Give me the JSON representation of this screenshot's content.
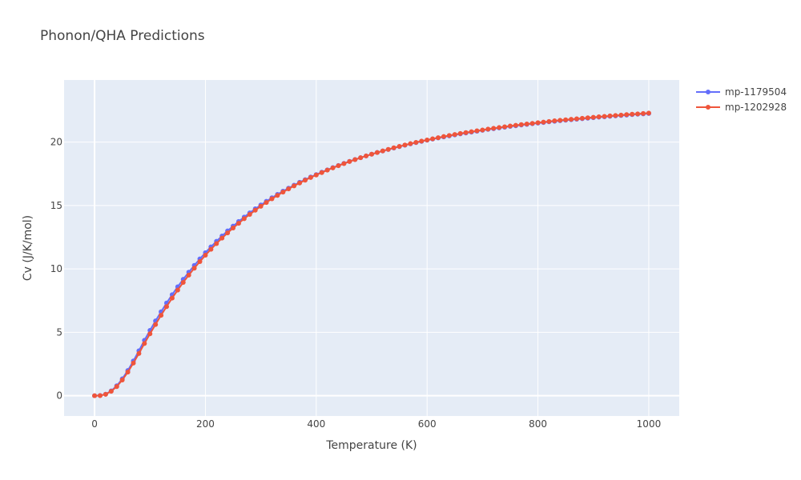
{
  "chart_data": {
    "type": "line",
    "title": "Phonon/QHA Predictions",
    "xlabel": "Temperature (K)",
    "ylabel": "Cv (J/K/mol)",
    "xlim": [
      -55,
      1055
    ],
    "ylim": [
      -1.6,
      24.9
    ],
    "x_ticks": [
      0,
      200,
      400,
      600,
      800,
      1000
    ],
    "y_ticks": [
      0,
      5,
      10,
      15,
      20
    ],
    "grid": true,
    "legend_position": "top-right",
    "x": [
      0,
      10,
      20,
      30,
      40,
      50,
      60,
      70,
      80,
      90,
      100,
      110,
      120,
      130,
      140,
      150,
      160,
      170,
      180,
      190,
      200,
      210,
      220,
      230,
      240,
      250,
      260,
      270,
      280,
      290,
      300,
      310,
      320,
      330,
      340,
      350,
      360,
      370,
      380,
      390,
      400,
      410,
      420,
      430,
      440,
      450,
      460,
      470,
      480,
      490,
      500,
      510,
      520,
      530,
      540,
      550,
      560,
      570,
      580,
      590,
      600,
      610,
      620,
      630,
      640,
      650,
      660,
      670,
      680,
      690,
      700,
      710,
      720,
      730,
      740,
      750,
      760,
      770,
      780,
      790,
      800,
      810,
      820,
      830,
      840,
      850,
      860,
      870,
      880,
      890,
      900,
      910,
      920,
      930,
      940,
      950,
      960,
      970,
      980,
      990,
      1000
    ],
    "series": [
      {
        "name": "mp-1179504",
        "color": "#636efa",
        "values": [
          0.0,
          0.02,
          0.12,
          0.38,
          0.78,
          1.33,
          1.99,
          2.74,
          3.54,
          4.37,
          5.15,
          5.9,
          6.62,
          7.31,
          7.97,
          8.59,
          9.18,
          9.74,
          10.28,
          10.79,
          11.28,
          11.74,
          12.18,
          12.6,
          13.0,
          13.38,
          13.74,
          14.09,
          14.42,
          14.74,
          15.04,
          15.33,
          15.61,
          15.88,
          16.13,
          16.37,
          16.6,
          16.83,
          17.04,
          17.25,
          17.44,
          17.63,
          17.81,
          17.99,
          18.16,
          18.32,
          18.48,
          18.63,
          18.77,
          18.91,
          19.05,
          19.18,
          19.3,
          19.42,
          19.54,
          19.65,
          19.76,
          19.86,
          19.96,
          20.06,
          20.15,
          20.24,
          20.33,
          20.41,
          20.49,
          20.57,
          20.65,
          20.72,
          20.79,
          20.86,
          20.93,
          21.0,
          21.06,
          21.12,
          21.18,
          21.24,
          21.29,
          21.35,
          21.4,
          21.45,
          21.5,
          21.55,
          21.6,
          21.64,
          21.69,
          21.73,
          21.77,
          21.81,
          21.85,
          21.89,
          21.93,
          21.97,
          22.0,
          22.04,
          22.07,
          22.1,
          22.13,
          22.17,
          22.2,
          22.23,
          22.26
        ]
      },
      {
        "name": "mp-1202928",
        "color": "#ef553b",
        "values": [
          0.0,
          0.01,
          0.11,
          0.35,
          0.72,
          1.24,
          1.86,
          2.57,
          3.33,
          4.12,
          4.88,
          5.62,
          6.34,
          7.03,
          7.7,
          8.33,
          8.94,
          9.51,
          10.06,
          10.58,
          11.08,
          11.55,
          12.0,
          12.43,
          12.84,
          13.23,
          13.6,
          13.96,
          14.3,
          14.63,
          14.94,
          15.24,
          15.53,
          15.8,
          16.06,
          16.31,
          16.55,
          16.78,
          17.0,
          17.21,
          17.41,
          17.6,
          17.79,
          17.97,
          18.14,
          18.31,
          18.47,
          18.62,
          18.77,
          18.91,
          19.05,
          19.18,
          19.31,
          19.43,
          19.55,
          19.66,
          19.77,
          19.88,
          19.98,
          20.08,
          20.17,
          20.26,
          20.35,
          20.44,
          20.52,
          20.6,
          20.68,
          20.75,
          20.82,
          20.89,
          20.96,
          21.03,
          21.09,
          21.15,
          21.21,
          21.27,
          21.33,
          21.38,
          21.43,
          21.48,
          21.53,
          21.58,
          21.63,
          21.68,
          21.72,
          21.76,
          21.8,
          21.84,
          21.88,
          21.92,
          21.96,
          22.0,
          22.03,
          22.07,
          22.1,
          22.13,
          22.17,
          22.2,
          22.23,
          22.26,
          22.29
        ]
      }
    ]
  }
}
